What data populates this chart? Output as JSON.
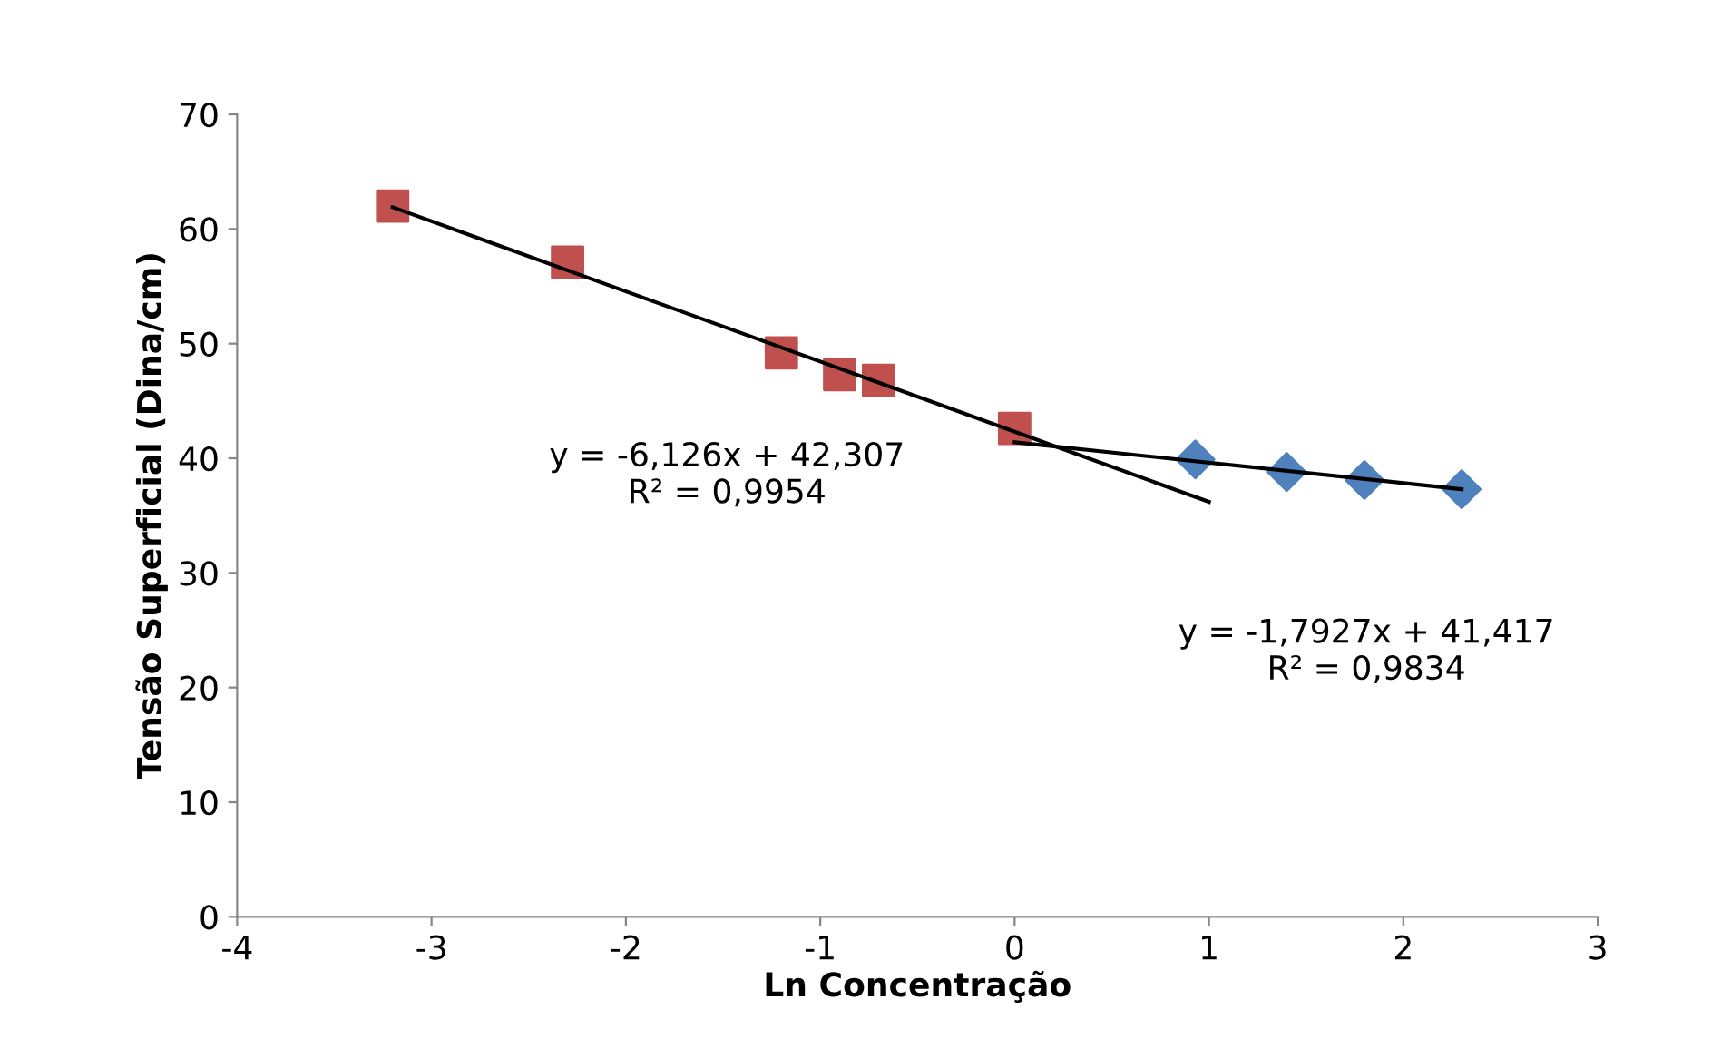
{
  "chart_data": {
    "type": "scatter",
    "xlabel": "Ln Concentração",
    "ylabel": "Tensão Superficial (Dina/cm)",
    "xlim": [
      -4,
      3
    ],
    "xticks": [
      -4,
      -3,
      -2,
      -1,
      0,
      1,
      2,
      3
    ],
    "ylim": [
      0,
      70
    ],
    "yticks": [
      0,
      10,
      20,
      30,
      40,
      50,
      60,
      70
    ],
    "grid": false,
    "legend": false,
    "series": [
      {
        "marker": "square",
        "color": "#c0504d",
        "x": [
          -3.2,
          -2.3,
          -1.2,
          -0.9,
          -0.7,
          0
        ],
        "values": [
          62.0,
          57.1,
          49.2,
          47.3,
          46.8,
          42.6
        ]
      },
      {
        "marker": "diamond",
        "color": "#4f81bd",
        "x": [
          0.93,
          1.4,
          1.8,
          2.3
        ],
        "values": [
          39.9,
          38.8,
          38.1,
          37.3
        ]
      },
      {
        "type": "line",
        "marker": "none",
        "color": "#000000",
        "x": [
          -3.2,
          1.0
        ],
        "values": [
          61.9,
          36.2
        ]
      },
      {
        "type": "line",
        "marker": "none",
        "color": "#000000",
        "x": [
          0,
          2.3
        ],
        "values": [
          41.4,
          37.3
        ]
      }
    ],
    "annotations": [
      "y = -6,126x + 42,307\nR² = 0,9954",
      "y = -1,7927x + 41,417\nR² = 0,9834"
    ]
  }
}
